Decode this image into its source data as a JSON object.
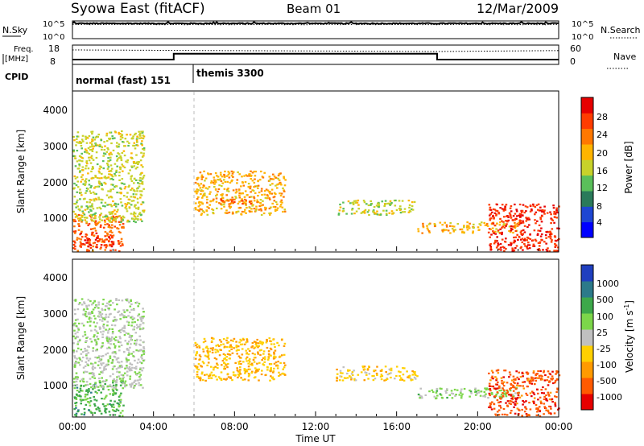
{
  "header": {
    "station": "Syowa East (fitACF)",
    "beam": "Beam 01",
    "date": "12/Mar/2009"
  },
  "noise_panel": {
    "left_label": "N.Sky",
    "left_ticks": [
      "10^5",
      "10^0"
    ],
    "right_label": "N.Search",
    "right_ticks": [
      "10^5",
      "10^0"
    ]
  },
  "freq_panel": {
    "left_label_1": "Freq.",
    "left_label_2": "[MHz]",
    "left_ticks": [
      "18",
      "8"
    ],
    "right_label": "Nave",
    "right_ticks": [
      "60",
      "0"
    ]
  },
  "cpid_panel": {
    "label": "CPID",
    "modes": [
      {
        "name": "normal (fast) 151",
        "start": 0
      },
      {
        "name": "themis 3300",
        "start": 6
      }
    ]
  },
  "axes": {
    "ylabel": "Slant Range [km]",
    "yticks": [
      "1000",
      "2000",
      "3000",
      "4000"
    ],
    "xticks": [
      "00:00",
      "04:00",
      "08:00",
      "12:00",
      "16:00",
      "20:00",
      "00:00"
    ],
    "xlabel": "Time UT"
  },
  "power_colorbar": {
    "label": "Power [dB]",
    "ticks": [
      "4",
      "8",
      "12",
      "16",
      "20",
      "24",
      "28"
    ],
    "colors": [
      "#0000ff",
      "#1e46d2",
      "#2a7a5a",
      "#5abf5a",
      "#c8d22a",
      "#ffb400",
      "#ff7800",
      "#ff3c00",
      "#e60000"
    ]
  },
  "velocity_colorbar": {
    "label": "Velocity [m s",
    "label_sup": "-1",
    "label_end": "]",
    "ticks": [
      "1000",
      "500",
      "100",
      "25",
      "-25",
      "-100",
      "-500",
      "-1000"
    ],
    "colors": [
      "#1f3fbf",
      "#2c7a8a",
      "#3da84a",
      "#7cd64a",
      "#c0c0c0",
      "#ffd000",
      "#ff9a00",
      "#ff5a00",
      "#e60000"
    ]
  },
  "chart_data": [
    {
      "type": "line",
      "title": "",
      "ylabel": "N.Sky",
      "scale": "log",
      "ylim": [
        1,
        100000
      ],
      "x": [
        0,
        24
      ],
      "series": [
        {
          "name": "N.Sky",
          "values": [
            20000,
            20000
          ]
        },
        {
          "name": "N.Search",
          "values": [
            10000,
            10000
          ]
        }
      ]
    },
    {
      "type": "line",
      "title": "",
      "ylabel": "Freq. [MHz]",
      "ylim": [
        8,
        18
      ],
      "series": [
        {
          "name": "Freq",
          "x": [
            0,
            5,
            5,
            18,
            18,
            24
          ],
          "values": [
            10.5,
            10.5,
            13.5,
            13.5,
            10.5,
            10.5
          ]
        },
        {
          "name": "Nave",
          "x": [
            0,
            18,
            24
          ],
          "values": [
            45,
            40,
            43
          ]
        }
      ]
    },
    {
      "type": "heatmap",
      "title": "Power [dB]",
      "xlabel": "Time UT",
      "ylabel": "Slant Range [km]",
      "xlim": [
        0,
        24
      ],
      "ylim": [
        180,
        4560
      ],
      "colorbar_range": [
        0,
        32
      ],
      "regions": [
        {
          "t_start": 0.0,
          "t_end": 2.5,
          "range_low": 200,
          "range_high": 1200,
          "value": 24
        },
        {
          "t_start": 0.3,
          "t_end": 2.0,
          "range_low": 300,
          "range_high": 700,
          "value": 28
        },
        {
          "t_start": 0.0,
          "t_end": 3.5,
          "range_low": 1000,
          "range_high": 3500,
          "value": 16
        },
        {
          "t_start": 6.0,
          "t_end": 10.5,
          "range_low": 1200,
          "range_high": 2400,
          "value": 20
        },
        {
          "t_start": 7.2,
          "t_end": 9.2,
          "range_low": 1500,
          "range_high": 1700,
          "value": 24
        },
        {
          "t_start": 13.0,
          "t_end": 17.0,
          "range_low": 1200,
          "range_high": 1600,
          "value": 16
        },
        {
          "t_start": 17.0,
          "t_end": 22.0,
          "range_low": 700,
          "range_high": 1000,
          "value": 20
        },
        {
          "t_start": 20.5,
          "t_end": 24.0,
          "range_low": 200,
          "range_high": 1500,
          "value": 28
        }
      ]
    },
    {
      "type": "heatmap",
      "title": "Velocity [m s-1]",
      "xlabel": "Time UT",
      "ylabel": "Slant Range [km]",
      "xlim": [
        0,
        24
      ],
      "ylim": [
        180,
        4560
      ],
      "colorbar_range": [
        -1000,
        1000
      ],
      "regions": [
        {
          "t_start": 0.0,
          "t_end": 2.5,
          "range_low": 200,
          "range_high": 1200,
          "value": 400
        },
        {
          "t_start": 0.0,
          "t_end": 3.5,
          "range_low": 1000,
          "range_high": 3500,
          "value": 80
        },
        {
          "t_start": 6.0,
          "t_end": 10.5,
          "range_low": 1200,
          "range_high": 2400,
          "value": -300
        },
        {
          "t_start": 13.0,
          "t_end": 17.0,
          "range_low": 1200,
          "range_high": 1600,
          "value": -200
        },
        {
          "t_start": 17.0,
          "t_end": 22.0,
          "range_low": 700,
          "range_high": 1000,
          "value": 200
        },
        {
          "t_start": 20.5,
          "t_end": 24.0,
          "range_low": 200,
          "range_high": 1500,
          "value": -700
        }
      ]
    }
  ]
}
